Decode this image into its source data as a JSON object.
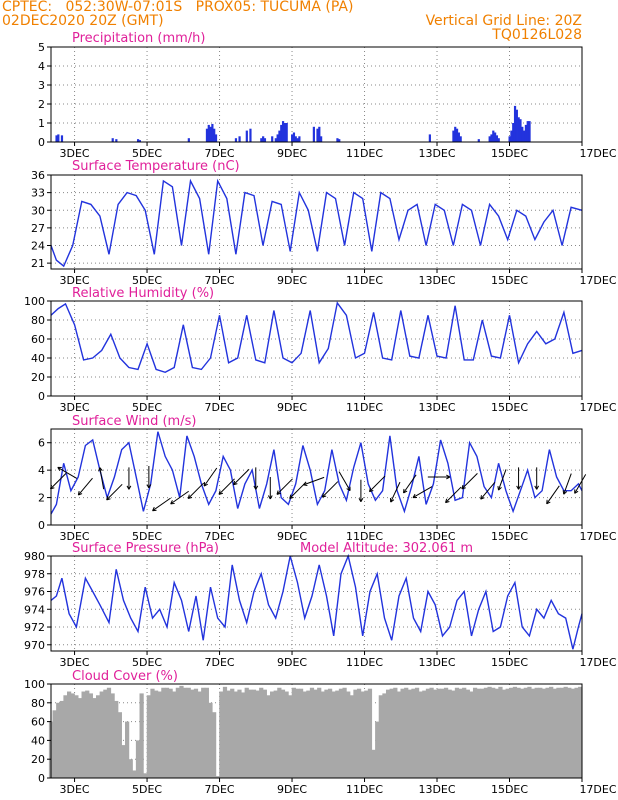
{
  "header": {
    "line1_left": "CPTEC:   052:30W-07:01S   PROX05: TUCUMA (PA)",
    "line2_left": "02DEC2020 20Z (GMT)",
    "line2_right": "Vertical Grid Line: 20Z",
    "line3_right": "TQ0126L028"
  },
  "colors": {
    "series": "#2233dd",
    "title": "#e0209a",
    "header": "#f08000",
    "cloud": "#a8a8a8",
    "grid": "#888888"
  },
  "x_axis": {
    "tick_labels": [
      "3DEC",
      "5DEC",
      "7DEC",
      "9DEC",
      "11DEC",
      "13DEC",
      "15DEC",
      "17DEC"
    ],
    "tick_days": [
      3,
      5,
      7,
      9,
      11,
      13,
      15,
      17
    ],
    "range_days": [
      2.35,
      17.0
    ]
  },
  "chart_data": [
    {
      "type": "bar",
      "title": "Precipitation (mm/h)",
      "ylim": [
        0,
        5
      ],
      "yticks": [
        0,
        1,
        2,
        3,
        4,
        5
      ],
      "grid": true,
      "x": [
        2.5,
        2.55,
        2.65,
        4.05,
        4.15,
        4.75,
        4.8,
        6.15,
        6.65,
        6.7,
        6.75,
        6.8,
        6.85,
        6.9,
        7.45,
        7.55,
        7.75,
        7.85,
        8.15,
        8.2,
        8.25,
        8.45,
        8.55,
        8.6,
        8.65,
        8.7,
        8.75,
        8.8,
        8.85,
        9.0,
        9.05,
        9.1,
        9.15,
        9.2,
        9.6,
        9.7,
        9.75,
        9.8,
        10.25,
        10.3,
        12.8,
        13.45,
        13.5,
        13.55,
        13.6,
        13.65,
        14.15,
        14.45,
        14.5,
        14.55,
        14.6,
        14.65,
        14.7,
        15.0,
        15.05,
        15.1,
        15.15,
        15.2,
        15.25,
        15.3,
        15.35,
        15.4,
        15.45,
        15.5,
        15.55
      ],
      "values": [
        0.35,
        0.4,
        0.35,
        0.2,
        0.15,
        0.15,
        0.1,
        0.2,
        0.7,
        0.9,
        0.8,
        0.95,
        0.7,
        0.4,
        0.2,
        0.3,
        0.6,
        0.7,
        0.2,
        0.3,
        0.2,
        0.3,
        0.2,
        0.4,
        0.6,
        0.9,
        1.1,
        1.0,
        1.0,
        0.4,
        0.5,
        0.3,
        0.2,
        0.3,
        0.8,
        0.7,
        0.8,
        0.3,
        0.2,
        0.15,
        0.4,
        0.6,
        0.8,
        0.7,
        0.5,
        0.3,
        0.15,
        0.3,
        0.4,
        0.6,
        0.5,
        0.35,
        0.2,
        0.3,
        0.6,
        1.0,
        1.9,
        1.7,
        1.3,
        1.2,
        0.8,
        0.6,
        0.9,
        1.1,
        1.1
      ]
    },
    {
      "type": "line",
      "title": "Surface Temperature (nC)",
      "ylim": [
        20,
        36
      ],
      "yticks": [
        21,
        24,
        27,
        30,
        33,
        36
      ],
      "grid": true,
      "x": [
        2.35,
        2.5,
        2.7,
        2.95,
        3.2,
        3.45,
        3.7,
        3.95,
        4.2,
        4.45,
        4.7,
        4.95,
        5.2,
        5.45,
        5.7,
        5.95,
        6.2,
        6.45,
        6.7,
        6.95,
        7.2,
        7.45,
        7.7,
        7.95,
        8.2,
        8.45,
        8.7,
        8.95,
        9.2,
        9.45,
        9.7,
        9.95,
        10.2,
        10.45,
        10.7,
        10.95,
        11.2,
        11.45,
        11.7,
        11.95,
        12.2,
        12.45,
        12.7,
        12.95,
        13.2,
        13.45,
        13.7,
        13.95,
        14.2,
        14.45,
        14.7,
        14.95,
        15.2,
        15.45,
        15.7,
        15.95,
        16.2,
        16.45,
        16.7,
        17.0
      ],
      "values": [
        24,
        21.5,
        20.5,
        24,
        31.5,
        31,
        29,
        22.5,
        31,
        33,
        32.5,
        30,
        22.5,
        35,
        34,
        24,
        35,
        32,
        22.5,
        35,
        32,
        22.5,
        33,
        32.5,
        24,
        31.5,
        31,
        23,
        33,
        30,
        23,
        33,
        32,
        24,
        33,
        32,
        23,
        33,
        32,
        25,
        30,
        31,
        24,
        31,
        30,
        24,
        31,
        30,
        24,
        31,
        29,
        25,
        30,
        29,
        25,
        28,
        30,
        24,
        30.5,
        30
      ]
    },
    {
      "type": "line",
      "title": "Relative Humidity (%)",
      "ylim": [
        0,
        100
      ],
      "yticks": [
        0,
        20,
        40,
        60,
        80,
        100
      ],
      "grid": true,
      "x": [
        2.35,
        2.55,
        2.75,
        3.0,
        3.25,
        3.5,
        3.75,
        4.0,
        4.25,
        4.5,
        4.75,
        5.0,
        5.25,
        5.5,
        5.75,
        6.0,
        6.25,
        6.5,
        6.75,
        7.0,
        7.25,
        7.5,
        7.75,
        8.0,
        8.25,
        8.5,
        8.75,
        9.0,
        9.25,
        9.5,
        9.75,
        10.0,
        10.25,
        10.5,
        10.75,
        11.0,
        11.25,
        11.5,
        11.75,
        12.0,
        12.25,
        12.5,
        12.75,
        13.0,
        13.25,
        13.5,
        13.75,
        14.0,
        14.25,
        14.5,
        14.75,
        15.0,
        15.25,
        15.5,
        15.75,
        16.0,
        16.25,
        16.5,
        16.75,
        17.0
      ],
      "values": [
        85,
        92,
        97,
        75,
        38,
        40,
        48,
        65,
        40,
        30,
        28,
        55,
        28,
        25,
        30,
        75,
        30,
        28,
        40,
        85,
        35,
        40,
        85,
        38,
        35,
        90,
        40,
        35,
        45,
        90,
        35,
        50,
        98,
        85,
        40,
        45,
        88,
        40,
        38,
        90,
        42,
        40,
        85,
        42,
        40,
        95,
        38,
        38,
        80,
        42,
        40,
        85,
        35,
        55,
        68,
        55,
        60,
        88,
        45,
        48
      ]
    },
    {
      "type": "line",
      "title": "Surface Wind (m/s)",
      "ylim": [
        0,
        7
      ],
      "yticks": [
        0,
        2,
        4,
        6
      ],
      "grid": true,
      "x": [
        2.35,
        2.5,
        2.7,
        2.9,
        3.1,
        3.3,
        3.5,
        3.7,
        3.9,
        4.1,
        4.3,
        4.5,
        4.7,
        4.9,
        5.1,
        5.3,
        5.5,
        5.7,
        5.9,
        6.1,
        6.3,
        6.5,
        6.7,
        6.9,
        7.1,
        7.3,
        7.5,
        7.7,
        7.9,
        8.1,
        8.3,
        8.5,
        8.7,
        8.9,
        9.1,
        9.3,
        9.5,
        9.7,
        9.9,
        10.1,
        10.3,
        10.5,
        10.7,
        10.9,
        11.1,
        11.3,
        11.5,
        11.7,
        11.9,
        12.1,
        12.3,
        12.5,
        12.7,
        12.9,
        13.1,
        13.3,
        13.5,
        13.7,
        13.9,
        14.1,
        14.3,
        14.5,
        14.7,
        14.9,
        15.1,
        15.3,
        15.5,
        15.7,
        15.9,
        16.1,
        16.3,
        16.5,
        16.7,
        16.9,
        17.0
      ],
      "values": [
        0.8,
        1.5,
        4.5,
        2.5,
        3.5,
        5.8,
        6.2,
        4,
        2,
        3.5,
        5.5,
        6,
        3.5,
        1,
        3,
        6.8,
        5,
        4,
        2,
        6.5,
        5,
        3,
        1.5,
        2.5,
        5,
        4,
        1.2,
        3,
        4,
        1.2,
        3,
        5.5,
        2,
        1.5,
        3,
        5.8,
        4,
        1.5,
        2.5,
        5.5,
        3,
        1.8,
        4.2,
        6,
        3,
        1.8,
        2.5,
        6.5,
        2.5,
        1,
        2.8,
        5,
        1.5,
        3,
        6.2,
        4.5,
        1.8,
        2,
        6,
        5,
        2.8,
        2,
        4.5,
        2.5,
        1,
        2.5,
        4,
        2,
        2.5,
        5.5,
        3.5,
        2.5,
        2.5,
        3,
        2.5
      ],
      "arrow_x": [
        2.55,
        2.8,
        3.3,
        3.75,
        4.1,
        4.5,
        5.05,
        5.4,
        5.9,
        6.35,
        6.75,
        7.2,
        7.6,
        8.0,
        8.4,
        8.8,
        9.15,
        9.6,
        10.05,
        10.45,
        10.9,
        11.35,
        11.85,
        12.25,
        12.6,
        13.05,
        13.45,
        13.9,
        14.4,
        14.8,
        15.25,
        15.75,
        16.2,
        16.6,
        16.95
      ],
      "arrow_y": [
        3.2,
        3.8,
        2.8,
        3.4,
        2.4,
        3.4,
        3.5,
        1.5,
        2.0,
        2.5,
        3.5,
        2.8,
        3.5,
        3.4,
        2.7,
        2.8,
        2.5,
        3.2,
        2.6,
        3.2,
        2.5,
        3.0,
        2.4,
        3.0,
        2.4,
        3.5,
        2.2,
        3.2,
        2.5,
        3.3,
        3.4,
        3.4,
        2.2,
        3.0,
        3.0
      ],
      "arrow_dir": [
        225,
        150,
        230,
        100,
        225,
        270,
        270,
        215,
        215,
        225,
        235,
        225,
        225,
        270,
        270,
        225,
        225,
        200,
        225,
        300,
        270,
        225,
        245,
        235,
        210,
        0,
        225,
        225,
        230,
        250,
        270,
        270,
        235,
        250,
        240
      ]
    },
    {
      "type": "line",
      "title": "Surface Pressure (hPa)",
      "subtitle": "Model Altitude: 302.061 m",
      "ylim": [
        969.3,
        980
      ],
      "yticks": [
        970,
        972,
        974,
        976,
        978,
        980
      ],
      "grid": true,
      "x": [
        2.35,
        2.5,
        2.65,
        2.85,
        3.05,
        3.3,
        3.5,
        3.7,
        3.95,
        4.15,
        4.35,
        4.55,
        4.75,
        4.95,
        5.15,
        5.35,
        5.55,
        5.75,
        5.95,
        6.15,
        6.35,
        6.55,
        6.75,
        6.95,
        7.15,
        7.35,
        7.55,
        7.75,
        7.95,
        8.15,
        8.35,
        8.55,
        8.75,
        8.95,
        9.15,
        9.35,
        9.55,
        9.75,
        9.95,
        10.15,
        10.35,
        10.55,
        10.75,
        10.95,
        11.15,
        11.35,
        11.55,
        11.75,
        11.95,
        12.15,
        12.35,
        12.55,
        12.75,
        12.95,
        13.15,
        13.35,
        13.55,
        13.75,
        13.95,
        14.15,
        14.35,
        14.55,
        14.75,
        14.95,
        15.15,
        15.35,
        15.55,
        15.75,
        15.95,
        16.15,
        16.35,
        16.55,
        16.75,
        16.9,
        17.0
      ],
      "values": [
        975,
        975.5,
        977.5,
        973.5,
        972,
        977.5,
        976,
        974.5,
        972.5,
        978.5,
        975,
        973,
        971.5,
        976.5,
        973,
        974,
        972,
        977,
        975,
        971.5,
        975.5,
        970.5,
        976.5,
        973,
        972,
        979,
        975,
        972.5,
        976,
        978,
        974.5,
        973,
        976,
        980,
        977,
        973,
        975.5,
        979,
        975.5,
        971,
        978,
        980,
        976.5,
        971,
        976,
        978,
        973,
        970.5,
        975.5,
        977.5,
        973,
        971.5,
        976,
        974.5,
        971,
        972,
        975,
        976,
        971,
        974,
        976,
        971.5,
        972,
        975.5,
        977,
        972,
        971,
        974,
        973,
        975,
        973.5,
        973,
        969.5,
        972,
        973.5
      ]
    },
    {
      "type": "bar",
      "title": "Cloud Cover (%)",
      "ylim": [
        0,
        100
      ],
      "yticks": [
        0,
        20,
        40,
        60,
        80,
        100
      ],
      "grid": true,
      "x": [
        2.35,
        2.45,
        2.55,
        2.65,
        2.75,
        2.85,
        2.95,
        3.05,
        3.15,
        3.25,
        3.35,
        3.45,
        3.55,
        3.65,
        3.75,
        3.85,
        3.95,
        4.05,
        4.15,
        4.25,
        4.35,
        4.45,
        4.55,
        4.65,
        4.75,
        4.85,
        4.95,
        5.05,
        5.15,
        5.25,
        5.35,
        5.45,
        5.55,
        5.65,
        5.75,
        5.85,
        5.95,
        6.05,
        6.15,
        6.25,
        6.35,
        6.45,
        6.55,
        6.65,
        6.75,
        6.85,
        6.95,
        7.05,
        7.15,
        7.25,
        7.35,
        7.45,
        7.55,
        7.65,
        7.75,
        7.85,
        7.95,
        8.05,
        8.15,
        8.25,
        8.35,
        8.45,
        8.55,
        8.65,
        8.75,
        8.85,
        8.95,
        9.05,
        9.15,
        9.25,
        9.35,
        9.45,
        9.55,
        9.65,
        9.75,
        9.85,
        9.95,
        10.05,
        10.15,
        10.25,
        10.35,
        10.45,
        10.55,
        10.65,
        10.75,
        10.85,
        10.95,
        11.05,
        11.15,
        11.25,
        11.35,
        11.45,
        11.55,
        11.65,
        11.75,
        11.85,
        11.95,
        12.05,
        12.15,
        12.25,
        12.35,
        12.45,
        12.55,
        12.65,
        12.75,
        12.85,
        12.95,
        13.05,
        13.15,
        13.25,
        13.35,
        13.45,
        13.55,
        13.65,
        13.75,
        13.85,
        13.95,
        14.05,
        14.15,
        14.25,
        14.35,
        14.45,
        14.55,
        14.65,
        14.75,
        14.85,
        14.95,
        15.05,
        15.15,
        15.25,
        15.35,
        15.45,
        15.55,
        15.65,
        15.75,
        15.85,
        15.95,
        16.05,
        16.15,
        16.25,
        16.35,
        16.45,
        16.55,
        16.65,
        16.75,
        16.85,
        16.95
      ],
      "values": [
        60,
        72,
        80,
        82,
        88,
        92,
        90,
        88,
        85,
        92,
        93,
        90,
        85,
        88,
        92,
        94,
        96,
        90,
        82,
        70,
        35,
        60,
        20,
        8,
        40,
        90,
        5,
        88,
        95,
        93,
        92,
        96,
        96,
        95,
        92,
        96,
        98,
        96,
        96,
        94,
        95,
        92,
        96,
        96,
        80,
        70,
        2,
        92,
        97,
        93,
        95,
        92,
        94,
        91,
        96,
        94,
        94,
        93,
        96,
        94,
        88,
        92,
        93,
        96,
        94,
        92,
        88,
        96,
        95,
        95,
        92,
        93,
        96,
        94,
        96,
        92,
        94,
        95,
        92,
        93,
        95,
        96,
        92,
        88,
        94,
        95,
        92,
        93,
        95,
        30,
        60,
        88,
        90,
        94,
        95,
        96,
        92,
        95,
        96,
        94,
        95,
        96,
        92,
        93,
        95,
        96,
        94,
        95,
        95,
        96,
        94,
        93,
        96,
        95,
        96,
        94,
        92,
        96,
        95,
        95,
        96,
        97,
        96,
        95,
        97,
        94,
        95,
        96,
        97,
        96,
        95,
        96,
        97,
        95,
        96,
        96,
        95,
        96,
        97,
        95,
        96,
        96,
        97,
        96,
        95,
        96,
        97
      ]
    }
  ]
}
